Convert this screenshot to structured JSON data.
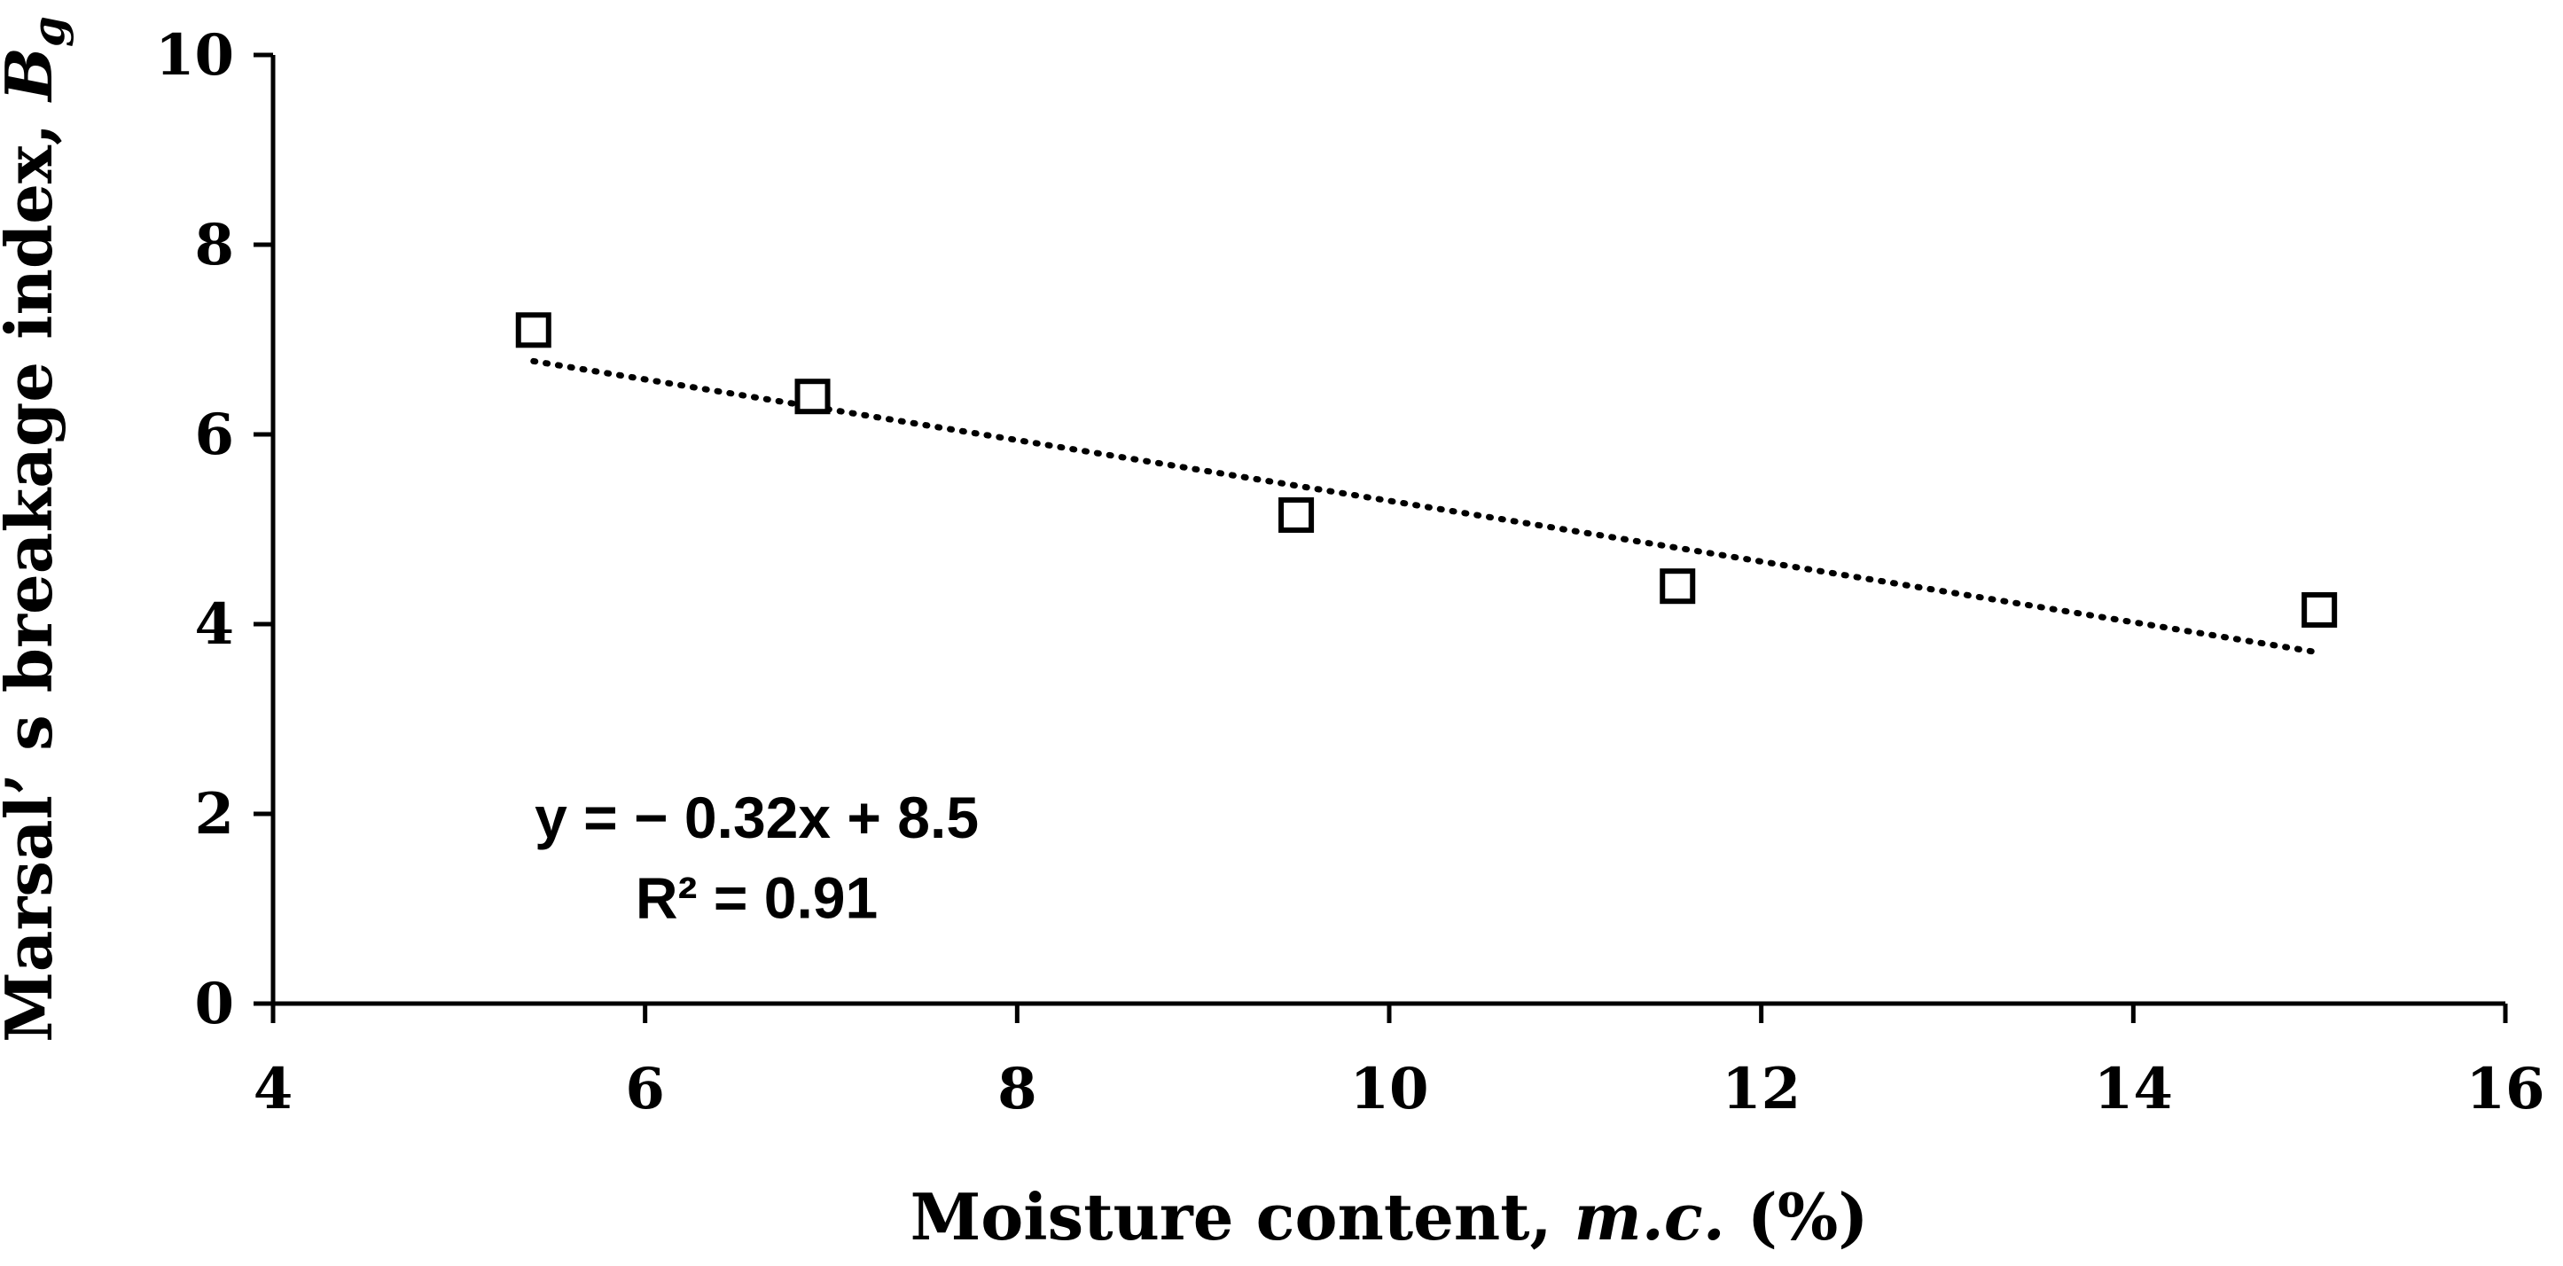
{
  "chart_data": {
    "type": "scatter",
    "title": "",
    "xlabel": "Moisture content, m.c. (%)",
    "xlabel_parts": {
      "main": "Moisture content, ",
      "italic": "m.c.",
      "tail": " (%)"
    },
    "ylabel": "Marsal’ s breakage index, Bg",
    "ylabel_parts": {
      "main": "Marsal’ s breakage index, ",
      "italic": "B",
      "sub": "g"
    },
    "xlim": [
      4,
      16
    ],
    "ylim": [
      0,
      10
    ],
    "x_ticks": [
      4,
      6,
      8,
      10,
      12,
      14,
      16
    ],
    "y_ticks": [
      0,
      2,
      4,
      6,
      8,
      10
    ],
    "grid": false,
    "series": [
      {
        "marker": "open-square",
        "x": [
          5.4,
          6.9,
          9.5,
          11.55,
          15.0
        ],
        "y": [
          7.1,
          6.4,
          5.15,
          4.4,
          4.15
        ]
      }
    ],
    "trendline": {
      "style": "dotted",
      "x_start": 5.4,
      "x_end": 15.0,
      "slope": -0.32,
      "intercept": 8.5
    },
    "annotations": {
      "equation": "y = − 0.32x + 8.5",
      "r2": "R² = 0.91"
    },
    "colors": {
      "axis": "#000000",
      "marker": "#000000",
      "trendline": "#000000"
    }
  }
}
